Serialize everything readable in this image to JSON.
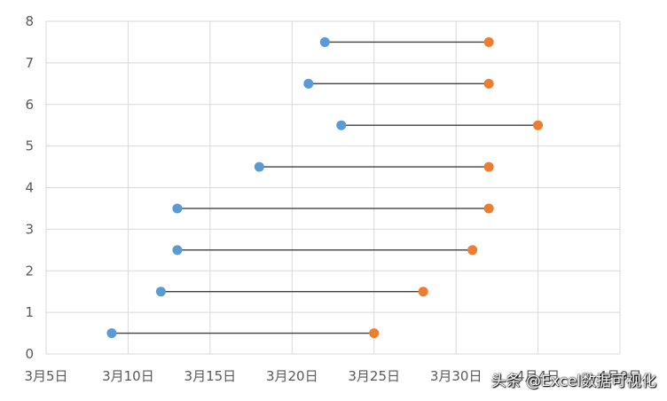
{
  "chart_data": {
    "type": "dumbbell",
    "x_axis": {
      "ticks": [
        "3月5日",
        "3月10日",
        "3月15日",
        "3月20日",
        "3月25日",
        "3月30日",
        "4月4日",
        "4月9日"
      ],
      "min_day": 0,
      "max_day": 35,
      "tick_step_days": 5
    },
    "y_axis": {
      "ticks": [
        "0",
        "1",
        "2",
        "3",
        "4",
        "5",
        "6",
        "7",
        "8"
      ],
      "min": 0,
      "max": 8
    },
    "rows": [
      {
        "y": 0.5,
        "start": "3月9日",
        "end": "3月25日"
      },
      {
        "y": 1.5,
        "start": "3月12日",
        "end": "3月28日"
      },
      {
        "y": 2.5,
        "start": "3月13日",
        "end": "3月31日"
      },
      {
        "y": 3.5,
        "start": "3月13日",
        "end": "4月1日"
      },
      {
        "y": 4.5,
        "start": "3月18日",
        "end": "4月1日"
      },
      {
        "y": 5.5,
        "start": "3月23日",
        "end": "4月4日"
      },
      {
        "y": 6.5,
        "start": "3月21日",
        "end": "4月1日"
      },
      {
        "y": 7.5,
        "start": "3月22日",
        "end": "4月1日"
      }
    ],
    "start_days": [
      4,
      7,
      8,
      8,
      13,
      18,
      16,
      17
    ],
    "end_days": [
      20,
      23,
      26,
      27,
      27,
      30,
      27,
      27
    ],
    "colors": {
      "start": "#5b9bd5",
      "end": "#ed7d31",
      "connector": "#404040",
      "grid": "#d9d9d9"
    },
    "grid": true,
    "legend": "none"
  },
  "watermark": "头条 @Excel数据可视化"
}
